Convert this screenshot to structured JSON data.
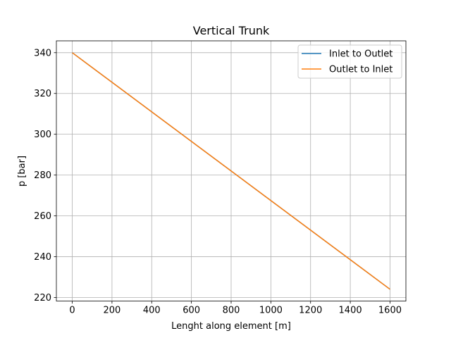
{
  "chart_data": {
    "type": "line",
    "title": "Vertical Trunk",
    "xlabel": "Lenght along element [m]",
    "ylabel": "p [bar]",
    "xlim": [
      -80,
      1680
    ],
    "ylim": [
      218.2,
      345.8
    ],
    "xticks": [
      0,
      200,
      400,
      600,
      800,
      1000,
      1200,
      1400,
      1600
    ],
    "yticks": [
      220,
      240,
      260,
      280,
      300,
      320,
      340
    ],
    "xtick_labels": [
      "0",
      "200",
      "400",
      "600",
      "800",
      "1000",
      "1200",
      "1400",
      "1600"
    ],
    "ytick_labels": [
      "220",
      "240",
      "260",
      "280",
      "300",
      "320",
      "340"
    ],
    "grid": true,
    "legend_position": "top-right",
    "series": [
      {
        "name": "Inlet to Outlet",
        "color": "#1f77b4",
        "x": [
          0,
          1600
        ],
        "y": [
          340,
          224
        ]
      },
      {
        "name": "Outlet to Inlet",
        "color": "#ff7f0e",
        "x": [
          0,
          1600
        ],
        "y": [
          340,
          224
        ]
      }
    ]
  }
}
